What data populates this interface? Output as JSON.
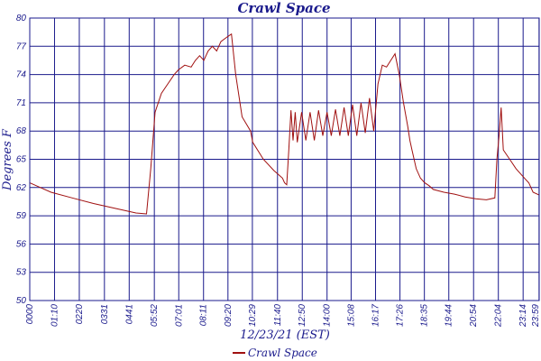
{
  "chart_data": {
    "type": "line",
    "title": "Crawl Space",
    "xlabel": "12/23/21 (EST)",
    "ylabel": "Degrees F",
    "ylim": [
      50,
      80
    ],
    "y_ticks": [
      "50",
      "53",
      "56",
      "59",
      "62",
      "65",
      "68",
      "71",
      "74",
      "77",
      "80"
    ],
    "x_ticks": [
      "00:00",
      "01:10",
      "02:20",
      "03:31",
      "04:41",
      "05:52",
      "07:01",
      "08:11",
      "09:20",
      "10:29",
      "11:40",
      "12:50",
      "14:00",
      "15:08",
      "16:17",
      "17:26",
      "18:35",
      "19:44",
      "20:54",
      "22:04",
      "23:14",
      "23:59"
    ],
    "x_tick_labels": [
      "0000",
      "01:10",
      "0220",
      "0331",
      "0441",
      "05:52",
      "07:01",
      "08:11",
      "09:20",
      "10:29",
      "11:40",
      "12:50",
      "14:00",
      "15:08",
      "16:17",
      "17:26",
      "18:35",
      "19:44",
      "20:54",
      "22:04",
      "23:14",
      "23:59"
    ],
    "grid": true,
    "legend_position": "bottom-center",
    "colors": {
      "series": "#a01010",
      "grid": "#1a1a8c",
      "text": "#1a1a8c"
    },
    "series": [
      {
        "name": "Crawl Space",
        "x": [
          0,
          0.5,
          1,
          2,
          3,
          4,
          5,
          5.5,
          5.7,
          5.9,
          6.2,
          6.5,
          6.8,
          7.0,
          7.3,
          7.6,
          7.8,
          8.0,
          8.2,
          8.4,
          8.6,
          8.8,
          9.0,
          9.3,
          9.5,
          9.7,
          10.0,
          10.4,
          10.5,
          11.0,
          11.5,
          11.9,
          12.0,
          12.1,
          12.2,
          12.3,
          12.4,
          12.5,
          12.6,
          12.8,
          13.0,
          13.2,
          13.4,
          13.6,
          13.8,
          14.0,
          14.2,
          14.4,
          14.6,
          14.8,
          15.0,
          15.2,
          15.4,
          15.6,
          15.8,
          16.0,
          16.2,
          16.4,
          16.6,
          16.8,
          17.0,
          17.2,
          17.4,
          17.6,
          17.8,
          17.9,
          18.0,
          18.2,
          18.4,
          18.6,
          18.8,
          19.0,
          19.5,
          20.0,
          20.5,
          21.0,
          21.5,
          21.9,
          22.0,
          22.1,
          22.2,
          22.3,
          22.6,
          22.9,
          23.1,
          23.3,
          23.5,
          23.7,
          23.99
        ],
        "y": [
          62.5,
          62.0,
          61.5,
          60.9,
          60.3,
          59.8,
          59.3,
          59.2,
          64,
          70,
          72,
          73,
          74,
          74.5,
          75,
          74.8,
          75.5,
          76,
          75.5,
          76.5,
          77,
          76.5,
          77.5,
          78,
          78.3,
          74,
          69.5,
          68,
          66.8,
          65,
          63.8,
          63,
          62.5,
          62.3,
          66,
          70.2,
          67,
          70,
          66.8,
          70,
          67,
          70,
          67,
          70.2,
          67.5,
          70,
          67.5,
          70.3,
          67.5,
          70.5,
          67.5,
          70.8,
          67.5,
          71,
          67.8,
          71.5,
          68,
          73,
          75,
          74.8,
          75.5,
          76.2,
          74,
          71,
          68.5,
          67,
          66,
          64,
          63,
          62.5,
          62.2,
          61.8,
          61.5,
          61.3,
          61.0,
          60.8,
          60.7,
          60.9,
          65,
          67.5,
          70.5,
          66,
          65,
          64,
          63.5,
          63,
          62.5,
          61.5,
          61.2
        ]
      }
    ]
  }
}
